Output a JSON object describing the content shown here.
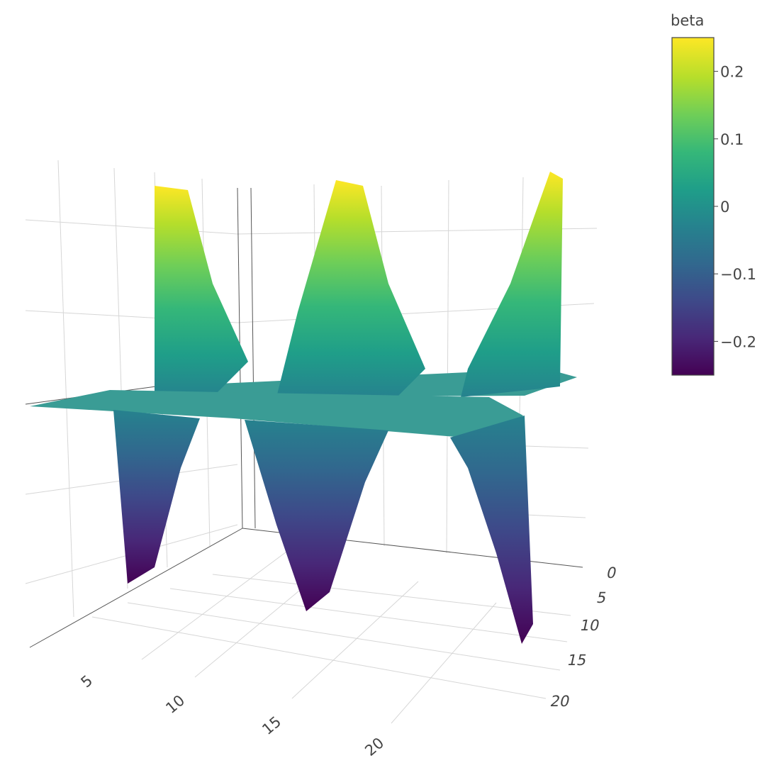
{
  "chart_data": {
    "type": "surface",
    "title": "",
    "x_axis": {
      "label": "",
      "ticks": [
        "5",
        "10",
        "15",
        "20"
      ]
    },
    "y_axis": {
      "label": "",
      "ticks": [
        "0",
        "5",
        "10",
        "15",
        "20"
      ]
    },
    "z_axis": {
      "label": "",
      "ticks": []
    },
    "grid": true,
    "colorscale": "viridis",
    "colorscale_stops": [
      "#440154",
      "#482878",
      "#3e4989",
      "#31688e",
      "#26828e",
      "#1f9e89",
      "#35b779",
      "#6ece58",
      "#b5de2b",
      "#fde725"
    ],
    "colorbar": {
      "title": "beta",
      "range": [
        -0.25,
        0.25
      ],
      "ticks": [
        {
          "value": 0.2,
          "label": "0.2"
        },
        {
          "value": 0.1,
          "label": "0.1"
        },
        {
          "value": 0,
          "label": "0"
        },
        {
          "value": -0.1,
          "label": "−0.1"
        },
        {
          "value": -0.2,
          "label": "−0.2"
        }
      ],
      "placement": "right"
    },
    "surface_sections": [
      {
        "name": "",
        "x": [
          1,
          3,
          5,
          7,
          9,
          11,
          13,
          15,
          17,
          19,
          21,
          23
        ],
        "z_at_low_y": [
          -0.25,
          -0.12,
          -0.04,
          0.0,
          0.0,
          -0.03,
          -0.1,
          -0.25,
          -0.1,
          -0.03,
          0.0,
          -0.25
        ],
        "z_at_high_y": [
          0.25,
          0.12,
          0.04,
          0.0,
          0.01,
          0.05,
          0.12,
          0.25,
          0.1,
          0.03,
          0.0,
          0.25
        ]
      }
    ]
  }
}
